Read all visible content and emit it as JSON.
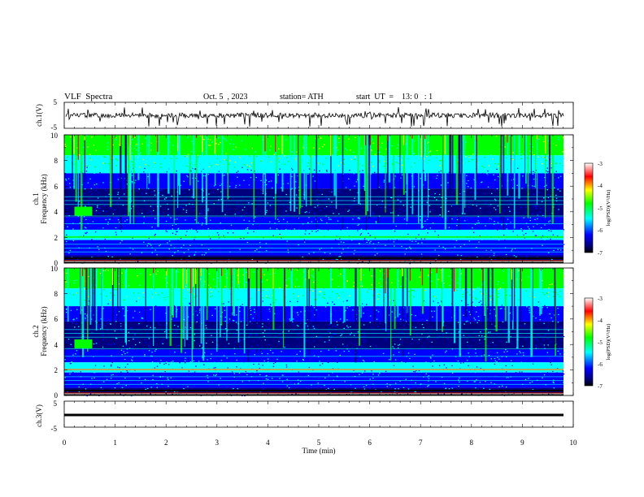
{
  "header": {
    "title": "VLF  Spectra",
    "date": "Oct. 5  , 2023",
    "station": "station= ATH",
    "start": "start  UT  =    13: 0   : 1"
  },
  "chart_data": [
    {
      "type": "line",
      "panel": "ch1-waveform",
      "ylabel": "ch.1(V)",
      "yticks": [
        "5",
        "-5"
      ],
      "ylim": [
        -5,
        5
      ],
      "xlim": [
        0,
        10
      ],
      "description": "noisy time-series trace near 0 V with sharp downward spikes"
    },
    {
      "type": "heatmap",
      "panel": "ch1-spectrogram",
      "ylabel_top": "ch.1",
      "ylabel": "Frequency  (kHz)",
      "ylim": [
        0,
        10
      ],
      "yticks": [
        "0",
        "2",
        "4",
        "6",
        "8",
        "10"
      ],
      "xlim": [
        0,
        10
      ],
      "colorbar": {
        "label": "log(PSD)(V²/Hz)",
        "ticks": [
          "-3",
          "-4",
          "-5",
          "-6",
          "-7"
        ],
        "range": [
          -7,
          -3
        ]
      }
    },
    {
      "type": "heatmap",
      "panel": "ch2-spectrogram",
      "ylabel_top": "ch.2",
      "ylabel": "Frequency  (kHz)",
      "ylim": [
        0,
        10
      ],
      "yticks": [
        "0",
        "2",
        "4",
        "6",
        "8",
        "10"
      ],
      "xlim": [
        0,
        10
      ],
      "colorbar": {
        "label": "log(PSD)(V²/Hz)",
        "ticks": [
          "-3",
          "-4",
          "-5",
          "-6",
          "-7"
        ],
        "range": [
          -7,
          -3
        ]
      }
    },
    {
      "type": "line",
      "panel": "ch3-waveform",
      "ylabel": "ch.3(V)",
      "yticks": [
        "5",
        "-5"
      ],
      "ylim": [
        -5,
        5
      ],
      "xlim": [
        0,
        10
      ],
      "description": "flat thick trace near -1 V across the whole record"
    }
  ],
  "xaxis": {
    "label": "Time  (min)",
    "ticks": [
      "0",
      "1",
      "2",
      "3",
      "4",
      "5",
      "6",
      "7",
      "8",
      "9",
      "10"
    ]
  },
  "colors": {
    "deep": "#00007f",
    "blue": "#0000ff",
    "cyan": "#00ffff",
    "green": "#00ff00",
    "yellow": "#ffff00",
    "red": "#ff0000"
  }
}
